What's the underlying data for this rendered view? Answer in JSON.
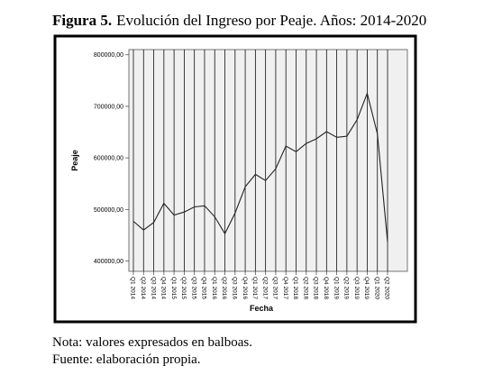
{
  "figure_label": "Figura 5.",
  "chart_data": {
    "type": "line",
    "title": "Evolución del Ingreso por Peaje. Años: 2014-2020",
    "x_label": "Fecha",
    "y_label": "Peaje",
    "categories": [
      "Q1 2014",
      "Q2 2014",
      "Q3 2014",
      "Q4 2014",
      "Q1 2015",
      "Q2 2015",
      "Q3 2015",
      "Q4 2015",
      "Q1 2016",
      "Q2 2016",
      "Q3 2016",
      "Q4 2016",
      "Q1 2017",
      "Q2 2017",
      "Q3 2017",
      "Q4 2017",
      "Q1 2018",
      "Q2 2018",
      "Q3 2018",
      "Q4 2018",
      "Q1 2019",
      "Q2 2019",
      "Q3 2019",
      "Q4 2019",
      "Q1 2020",
      "Q2 2020"
    ],
    "values": [
      477000,
      460000,
      475000,
      512000,
      489000,
      495000,
      505000,
      507000,
      486000,
      453000,
      493000,
      544000,
      568000,
      556000,
      579000,
      623000,
      612000,
      628000,
      637000,
      651000,
      640000,
      642000,
      674000,
      725000,
      647000,
      437000
    ],
    "color": "#222222",
    "ylim": [
      380000,
      810000
    ],
    "yticks": [
      {
        "value": 400000,
        "label": "400000,00"
      },
      {
        "value": 500000,
        "label": "500000,00"
      },
      {
        "value": 600000,
        "label": "600000,00"
      },
      {
        "value": 700000,
        "label": "700000,00"
      },
      {
        "value": 800000,
        "label": "800000,00"
      }
    ],
    "x_grid": true
  },
  "notes": [
    "Nota: valores expresados en balboas.",
    "Fuente: elaboración propia."
  ]
}
